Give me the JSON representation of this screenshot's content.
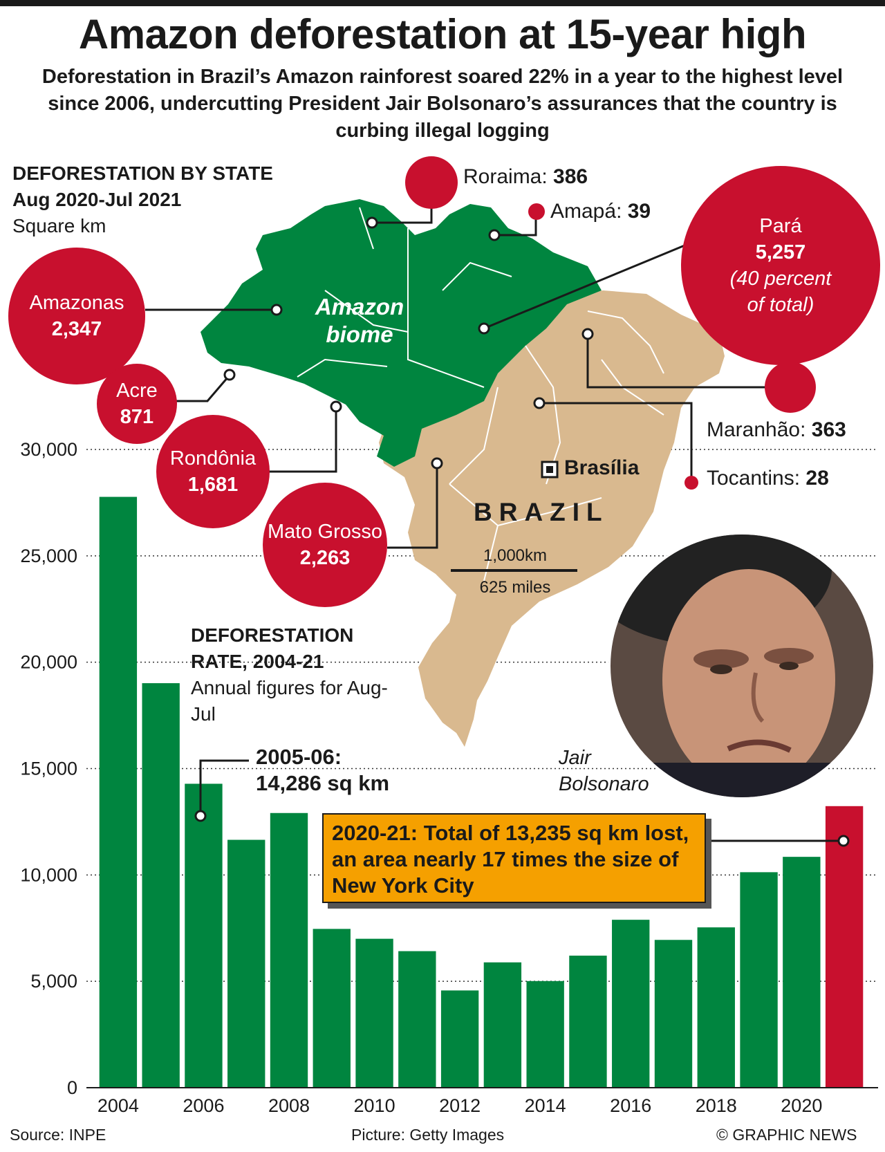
{
  "title": "Amazon deforestation at 15-year high",
  "subtitle": "Deforestation in Brazil’s Amazon rainforest soared 22% in a year to the highest level since 2006, undercutting President Jair Bolsonaro’s assurances that the country is curbing illegal logging",
  "by_state": {
    "heading": "DEFORESTATION BY STATE",
    "period": "Aug 2020-Jul 2021",
    "unit": "Square km",
    "states": [
      {
        "name": "Amazonas",
        "value": "2,347"
      },
      {
        "name": "Acre",
        "value": "871"
      },
      {
        "name": "Rondônia",
        "value": "1,681"
      },
      {
        "name": "Mato Grosso",
        "value": "2,263"
      },
      {
        "name": "Roraima",
        "value": "386"
      },
      {
        "name": "Amapá",
        "value": "39"
      },
      {
        "name": "Pará",
        "value": "5,257",
        "note": "(40 percent of total)"
      },
      {
        "name": "Maranhão",
        "value": "363"
      },
      {
        "name": "Tocantins",
        "value": "28"
      }
    ]
  },
  "map": {
    "biome_label": "Amazon biome",
    "country_label": "BRAZIL",
    "capital": "Brasília",
    "scale_km": "1,000km",
    "scale_miles": "625 miles"
  },
  "rate": {
    "heading": "DEFORESTATION RATE, 2004-21",
    "note": "Annual figures for Aug-Jul"
  },
  "annotations": {
    "peak_label": "2005-06:",
    "peak_value": "14,286 sq km",
    "callout": "2020-21: Total of 13,235 sq km lost, an area nearly 17 times the size of New York City"
  },
  "photo_caption": "Jair Bolsonaro",
  "footer": {
    "source": "Source: INPE",
    "picture": "Picture: Getty Images",
    "credit": "© GRAPHIC NEWS"
  },
  "colors": {
    "bar": "#00853f",
    "highlight_bar": "#c8102e",
    "bubble": "#c8102e",
    "amazon": "#00853f",
    "land": "#d9b98f",
    "callout": "#f5a000"
  },
  "chart_data": {
    "type": "bar",
    "title": "DEFORESTATION RATE, 2004-21",
    "subtitle": "Annual figures for Aug-Jul",
    "categories": [
      "2004",
      "2005",
      "2006",
      "2007",
      "2008",
      "2009",
      "2010",
      "2011",
      "2012",
      "2013",
      "2014",
      "2015",
      "2016",
      "2017",
      "2018",
      "2019",
      "2020",
      "2021"
    ],
    "x_tick_labels": [
      "2004",
      "2006",
      "2008",
      "2010",
      "2012",
      "2014",
      "2016",
      "2018",
      "2020"
    ],
    "values": [
      27772,
      19014,
      14286,
      11651,
      12911,
      7464,
      7000,
      6418,
      4571,
      5891,
      5012,
      6207,
      7893,
      6947,
      7536,
      10129,
      10851,
      13235
    ],
    "highlight_index": 17,
    "ylim": [
      0,
      30000
    ],
    "y_ticks": [
      0,
      5000,
      10000,
      15000,
      20000,
      25000,
      30000
    ],
    "y_tick_labels": [
      "0",
      "5,000",
      "10,000",
      "15,000",
      "20,000",
      "25,000",
      "30,000"
    ],
    "grid": "dotted",
    "xlabel": "",
    "ylabel": ""
  }
}
